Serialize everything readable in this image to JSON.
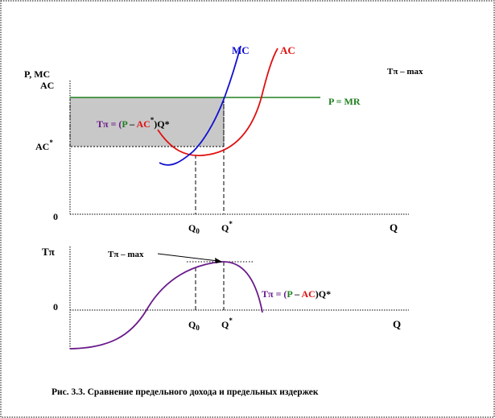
{
  "colors": {
    "mc": "#1010d0",
    "ac": "#e01010",
    "mr": "#208020",
    "profit": "#6a1a8a",
    "shade": "#c8c8c8",
    "text": "#000000"
  },
  "top_chart": {
    "y_label_1": "P, MC",
    "y_label_2": "AC",
    "ac_star_base": "AC",
    "ac_star_sup": "*",
    "origin": "0",
    "x_axis_label": "Q",
    "q0_base": "Q",
    "q0_sub": "0",
    "qstar_base": "Q",
    "qstar_sup": "*",
    "mc_label": "MC",
    "ac_label": "AC",
    "mr_label": "P = MR",
    "profit_max_label": "Tπ – max",
    "formula": {
      "part1": "Tπ = (",
      "part2": "P",
      "part3": " – ",
      "part4": "AC",
      "part5": "*",
      "part6": ")Q*"
    }
  },
  "bottom_chart": {
    "y_label": "Tπ",
    "origin": "0",
    "x_axis_label": "Q",
    "q0_base": "Q",
    "q0_sub": "0",
    "qstar_base": "Q",
    "qstar_sup": "*",
    "max_label": "Tπ – max",
    "formula": {
      "part1": "Tπ = (",
      "part2": "P",
      "part3": " – ",
      "part4": "AC",
      "part5": ")Q*"
    }
  },
  "caption": "Рис. 3.3. Сравнение предельного дохода и предельных издержек"
}
